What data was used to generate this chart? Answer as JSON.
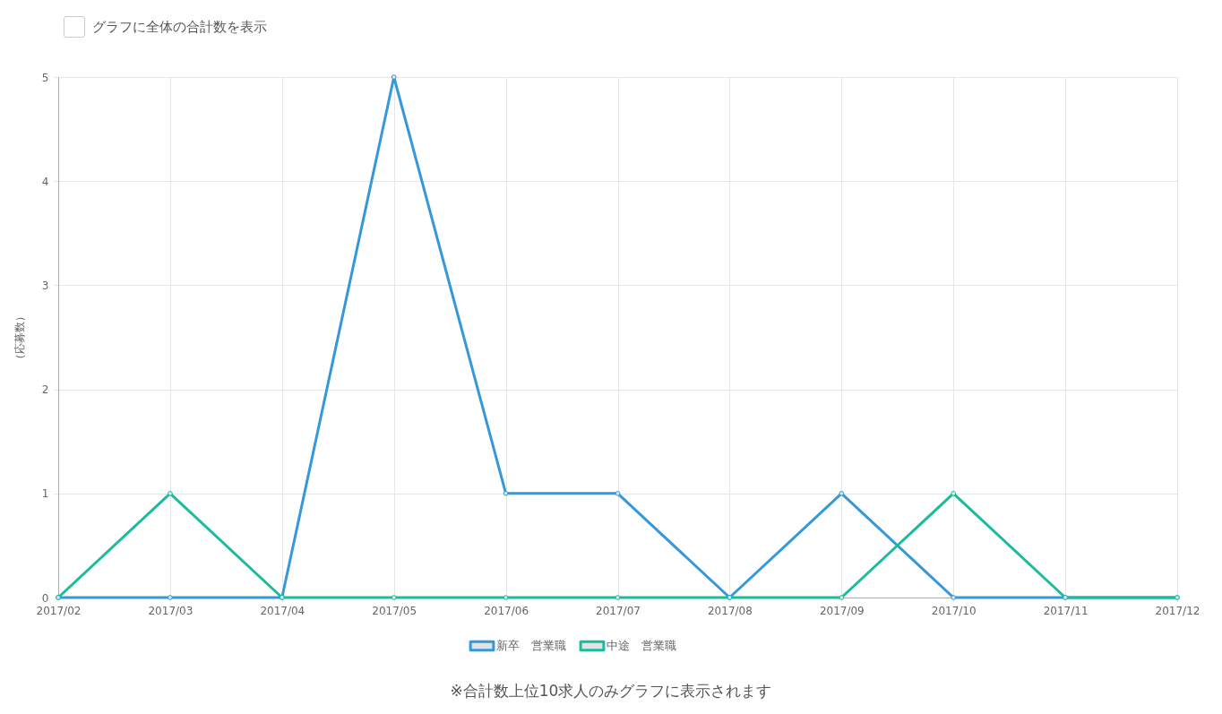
{
  "chart_data": {
    "type": "line",
    "ylabel": "（応募数）",
    "categories": [
      "2017/02",
      "2017/03",
      "2017/04",
      "2017/05",
      "2017/06",
      "2017/07",
      "2017/08",
      "2017/09",
      "2017/10",
      "2017/11",
      "2017/12"
    ],
    "series": [
      {
        "name": "新卒　営業職",
        "color": "#3498db",
        "values": [
          0,
          0,
          0,
          5,
          1,
          1,
          0,
          1,
          0,
          0,
          0
        ]
      },
      {
        "name": "中途　営業職",
        "color": "#1abc9c",
        "values": [
          0,
          1,
          0,
          0,
          0,
          0,
          0,
          0,
          1,
          0,
          0
        ]
      }
    ],
    "ylim": [
      0,
      5
    ],
    "yticks": [
      0,
      1,
      2,
      3,
      4,
      5
    ],
    "grid": true,
    "legend": "bottom",
    "marker": "circle",
    "line_style": "solid",
    "annotations": [
      "グラフに全体の合計数を表示",
      "※合計数上位10求人のみグラフに表示されます"
    ]
  }
}
